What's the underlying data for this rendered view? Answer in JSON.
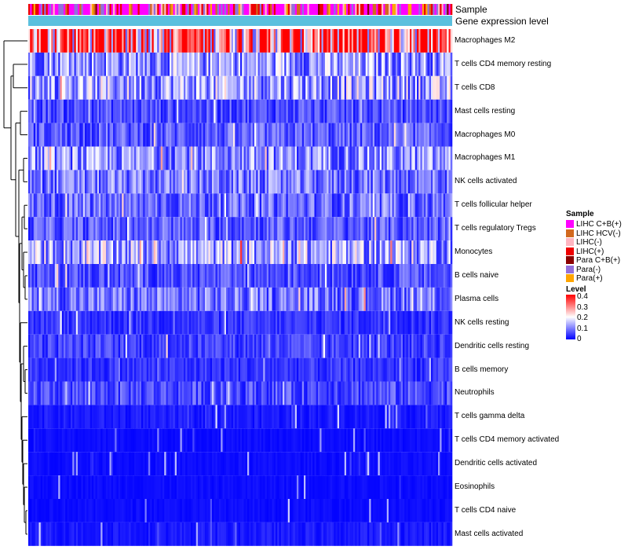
{
  "chart_data": {
    "type": "heatmap",
    "annotation_rows": [
      "Sample",
      "Gene expression level"
    ],
    "rows": [
      "Macrophages M2",
      "T cells CD4 memory resting",
      "T cells CD8",
      "Mast cells resting",
      "Macrophages M0",
      "Macrophages M1",
      "NK cells activated",
      "T cells follicular helper",
      "T cells regulatory  Tregs",
      "Monocytes",
      "B cells naive",
      "Plasma cells",
      "NK cells resting",
      "Dendritic cells resting",
      "B cells memory",
      "Neutrophils",
      "T cells gamma delta",
      "T cells CD4 memory activated",
      "Dendritic cells activated",
      "Eosinophils",
      "T cells CD4 naive",
      "Mast cells activated"
    ],
    "row_mean_level": [
      0.33,
      0.12,
      0.13,
      0.06,
      0.07,
      0.11,
      0.09,
      0.08,
      0.07,
      0.13,
      0.06,
      0.09,
      0.04,
      0.05,
      0.04,
      0.06,
      0.02,
      0.01,
      0.01,
      0.01,
      0.01,
      0.02
    ],
    "column_count": 240,
    "sample_legend": {
      "title": "Sample",
      "items": [
        {
          "label": "LIHC C+B(+)",
          "color": "#ff00ff"
        },
        {
          "label": "LIHC HCV(-)",
          "color": "#d2691e"
        },
        {
          "label": "LIHC(-)",
          "color": "#ffb6c1"
        },
        {
          "label": "LIHC(+)",
          "color": "#ee0000"
        },
        {
          "label": "Para C+B(+)",
          "color": "#8b0000"
        },
        {
          "label": "Para(-)",
          "color": "#9370db"
        },
        {
          "label": "Para(+)",
          "color": "#ffa500"
        }
      ]
    },
    "level_legend": {
      "title": "Level",
      "ticks": [
        "0.4",
        "0.3",
        "0.2",
        "0.1",
        "0"
      ],
      "range": [
        0,
        0.4
      ],
      "colors": {
        "high": "#ff0000",
        "mid": "#ffffff",
        "low": "#0000ff"
      }
    },
    "gene_expression_color": "#5bc0de",
    "dendrogram": "row-clustering-left"
  }
}
